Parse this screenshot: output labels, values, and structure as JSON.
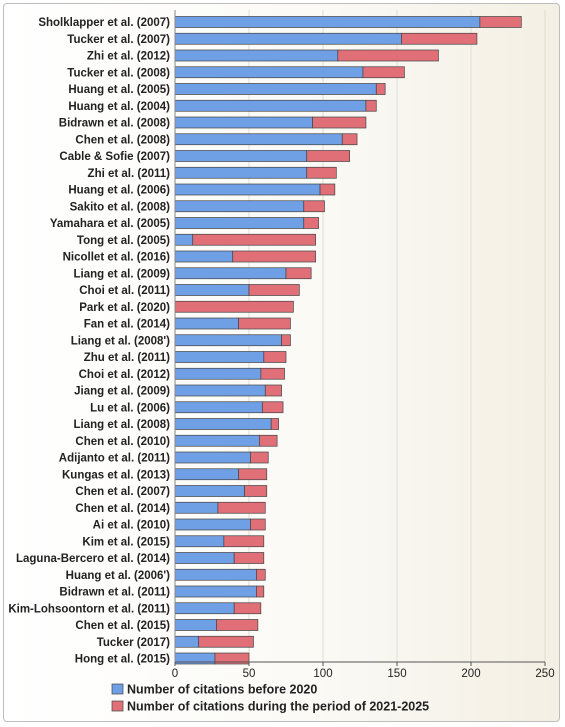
{
  "chart_data": {
    "type": "bar",
    "orientation": "horizontal",
    "stacked": true,
    "categories": [
      "Sholklapper et al. (2007)",
      "Tucker et al. (2007)",
      "Zhi et al. (2012)",
      "Tucker et al. (2008)",
      "Huang et al. (2005)",
      "Huang et al. (2004)",
      "Bidrawn et al. (2008)",
      "Chen et al. (2008)",
      "Cable & Sofie (2007)",
      "Zhi et al. (2011)",
      "Huang et al. (2006)",
      "Sakito et al. (2008)",
      "Yamahara et al. (2005)",
      "Tong et al. (2005)",
      "Nicollet et al. (2016)",
      "Liang et al. (2009)",
      "Choi et al. (2011)",
      "Park et al. (2020)",
      "Fan et al. (2014)",
      "Liang et al. (2008')",
      "Zhu et al. (2011)",
      "Choi et al. (2012)",
      "Jiang et al. (2009)",
      "Lu et al. (2006)",
      "Liang et al. (2008)",
      "Chen et al. (2010)",
      "Adijanto et al. (2011)",
      "Kungas et al. (2013)",
      "Chen et al. (2007)",
      "Chen et al. (2014)",
      "Ai et al. (2010)",
      "Kim et al. (2015)",
      "Laguna-Bercero et al. (2014)",
      "Huang et al. (2006')",
      "Bidrawn et al. (2011)",
      "Kim-Lohsoontorn et al. (2011)",
      "Chen et al. (2015)",
      "Tucker (2017)",
      "Hong et al. (2015)"
    ],
    "series": [
      {
        "name": "Number of citations before 2020",
        "color": "#6f9fe4",
        "values": [
          206,
          153,
          110,
          127,
          136,
          129,
          93,
          113,
          89,
          89,
          98,
          87,
          87,
          12,
          39,
          75,
          50,
          0,
          43,
          72,
          60,
          58,
          61,
          59,
          65,
          57,
          51,
          43,
          47,
          29,
          51,
          33,
          40,
          55,
          55,
          40,
          28,
          16,
          27
        ]
      },
      {
        "name": "Number of citations during the period of 2021-2025",
        "color": "#e06f78",
        "values": [
          28,
          51,
          68,
          28,
          6,
          7,
          36,
          10,
          29,
          20,
          10,
          14,
          10,
          83,
          56,
          17,
          34,
          80,
          35,
          6,
          15,
          16,
          11,
          14,
          5,
          12,
          12,
          19,
          15,
          32,
          10,
          27,
          20,
          6,
          5,
          18,
          28,
          37,
          23
        ]
      }
    ],
    "xlim": [
      0,
      250
    ],
    "xticks": [
      0,
      50,
      100,
      150,
      200,
      250
    ],
    "grid": "vertical",
    "legend_position": "bottom"
  }
}
